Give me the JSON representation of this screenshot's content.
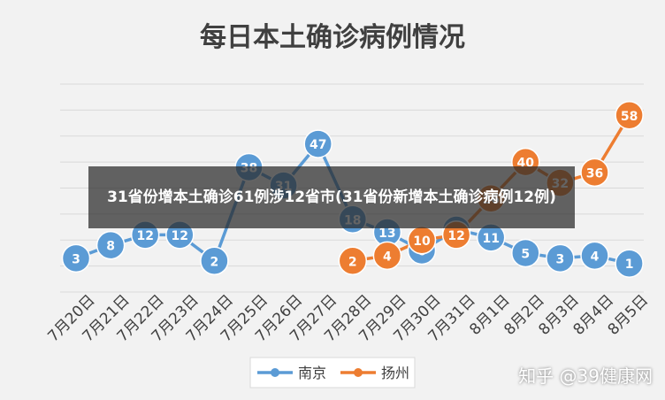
{
  "chart_data": {
    "type": "line",
    "title": "每日本土确诊病例情况",
    "categories": [
      "7月20日",
      "7月21日",
      "7月22日",
      "7月23日",
      "7月24日",
      "7月25日",
      "7月26日",
      "7月27日",
      "7月28日",
      "7月29日",
      "7月30日",
      "7月31日",
      "8月1日",
      "8月2日",
      "8月3日",
      "8月4日",
      "8月5日"
    ],
    "series": [
      {
        "name": "南京",
        "color": "#5b9bd5",
        "values": [
          3,
          8,
          12,
          12,
          2,
          38,
          31,
          47,
          18,
          13,
          6,
          14,
          11,
          5,
          3,
          4,
          1
        ]
      },
      {
        "name": "扬州",
        "color": "#ed7d31",
        "values": [
          null,
          null,
          null,
          null,
          null,
          null,
          null,
          null,
          2,
          4,
          10,
          12,
          26,
          40,
          32,
          36,
          58
        ]
      }
    ],
    "ylim": [
      -10,
      70
    ],
    "grid": true,
    "legend_position": "bottom"
  },
  "overlay_caption": "31省份增本土确诊61例涉12省市(31省份新增本土确诊病例12例)",
  "watermark": "知乎 @39健康网"
}
